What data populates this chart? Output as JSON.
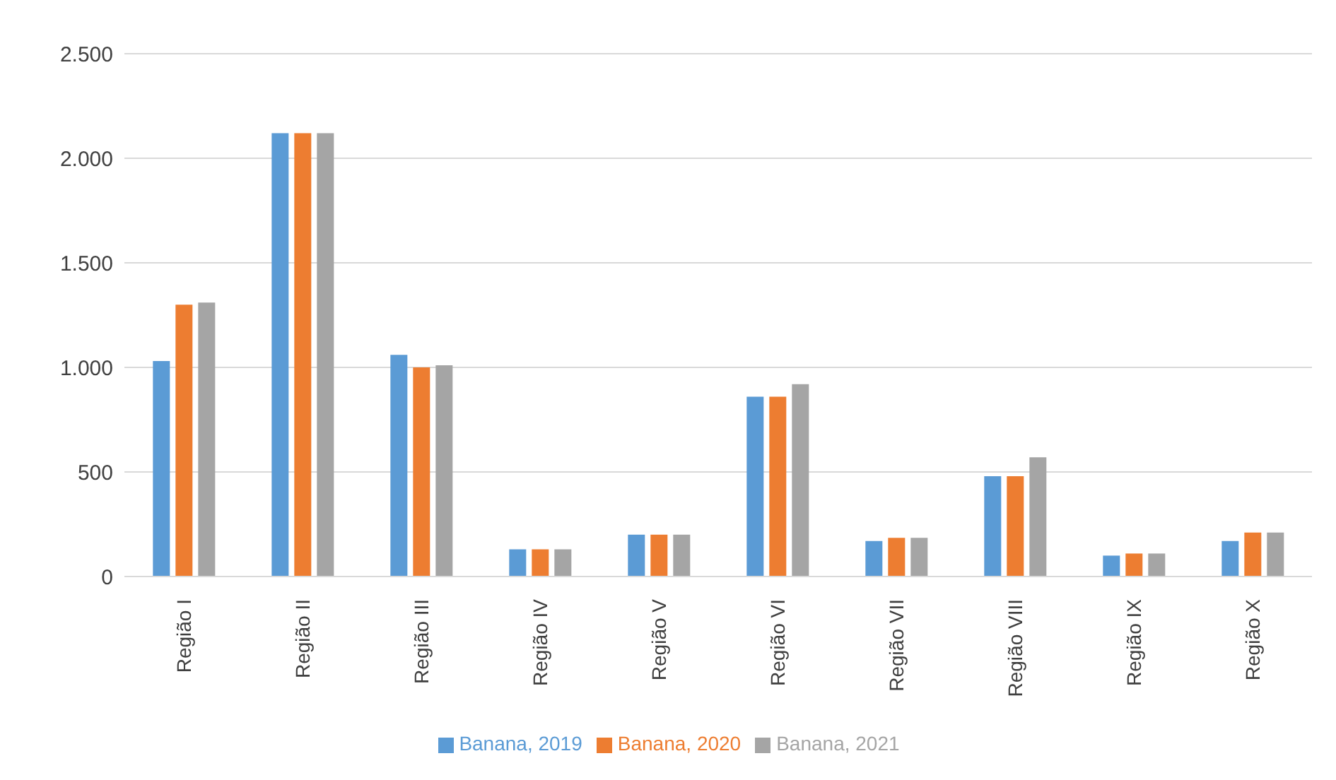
{
  "chart_data": {
    "type": "bar",
    "categories": [
      "Região I",
      "Região II",
      "Região III",
      "Região IV",
      "Região V",
      "Região VI",
      "Região VII",
      "Região VIII",
      "Região IX",
      "Região X"
    ],
    "series": [
      {
        "name": "Banana, 2019",
        "color": "#5b9bd5",
        "values": [
          1030,
          2120,
          1060,
          130,
          200,
          860,
          170,
          480,
          100,
          170
        ]
      },
      {
        "name": "Banana, 2020",
        "color": "#ed7d31",
        "values": [
          1300,
          2120,
          1000,
          130,
          200,
          860,
          185,
          480,
          110,
          210
        ]
      },
      {
        "name": "Banana, 2021",
        "color": "#a5a5a5",
        "values": [
          1310,
          2120,
          1010,
          130,
          200,
          920,
          185,
          570,
          110,
          210
        ]
      }
    ],
    "ylim": [
      0,
      2500
    ],
    "yticks": [
      {
        "value": 0,
        "label": "0"
      },
      {
        "value": 500,
        "label": "500"
      },
      {
        "value": 1000,
        "label": "1.000"
      },
      {
        "value": 1500,
        "label": "1.500"
      },
      {
        "value": 2000,
        "label": "2.000"
      },
      {
        "value": 2500,
        "label": "2.500"
      }
    ],
    "grid": "y",
    "legend": "bottom"
  }
}
